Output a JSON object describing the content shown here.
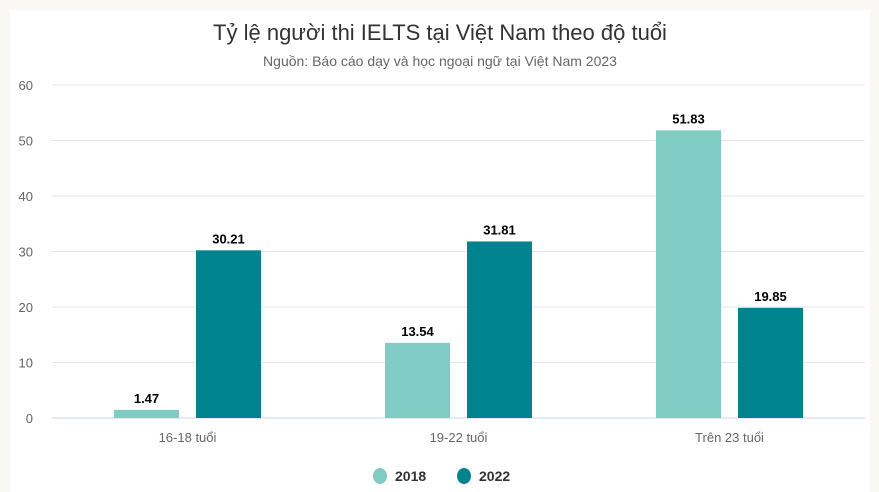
{
  "chart_data": {
    "type": "bar",
    "title": "Tỷ lệ người thi IELTS tại Việt Nam theo độ tuổi",
    "subtitle": "Nguồn: Báo cáo dạy và học ngoại ngữ tại Việt Nam 2023",
    "categories": [
      "16-18 tuổi",
      "19-22 tuổi",
      "Trên 23 tuổi"
    ],
    "series": [
      {
        "name": "2018",
        "values": [
          1.47,
          13.54,
          51.83
        ],
        "color": "#80cbc4"
      },
      {
        "name": "2022",
        "values": [
          30.21,
          31.81,
          19.85
        ],
        "color": "#00838f"
      }
    ],
    "ylim": [
      0,
      60
    ],
    "yticks": [
      0,
      10,
      20,
      30,
      40,
      50,
      60
    ],
    "grid": true,
    "legend": "bottom",
    "data_labels": true
  }
}
